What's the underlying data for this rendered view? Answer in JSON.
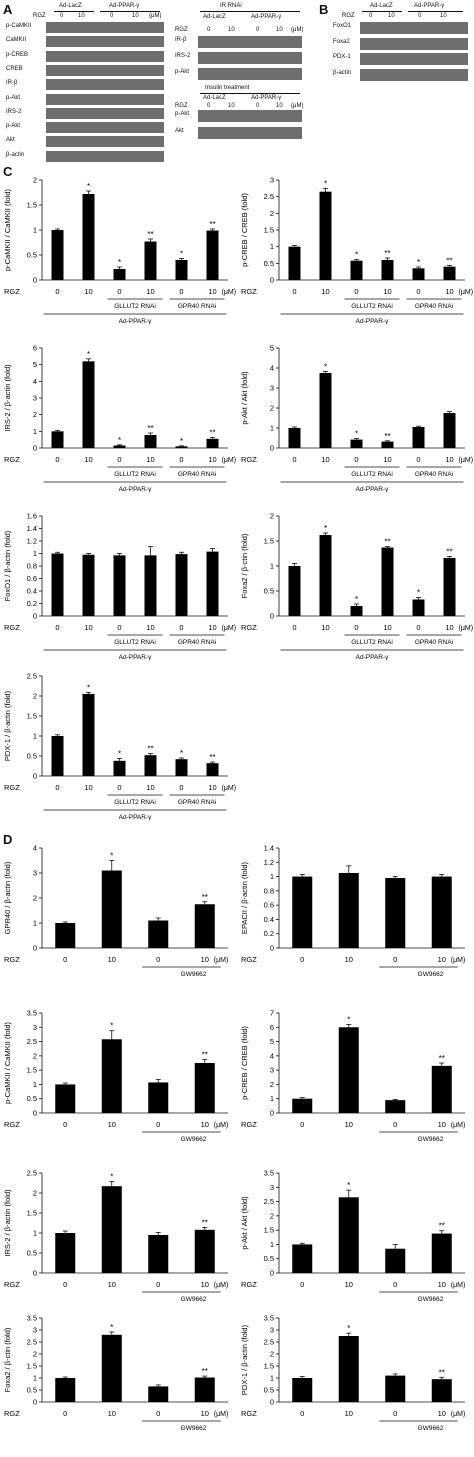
{
  "panel_labels": {
    "a": "A",
    "b": "B",
    "c": "C",
    "d": "D"
  },
  "wb": {
    "rgz": "RGZ",
    "lacz": "Ad-LacZ",
    "ppar": "Ad-PPAR-γ",
    "dose_0": "0",
    "dose_10": "10",
    "unit": "(μM)",
    "ir_rnai": "IR RNAi",
    "insulin": "Insulin treatment",
    "a_rows": [
      "p-CaMKII",
      "CaMKII",
      "p-CREB",
      "CREB",
      "IR-β",
      "p-Akt",
      "IRS-2",
      "p-Akt",
      "Akt",
      "β-actin"
    ],
    "a2_rows": [
      "IR-β",
      "IRS-2",
      "p-Akt"
    ],
    "a3_rows": [
      "p-Akt",
      "Akt"
    ],
    "b_rows": [
      "FoxO1",
      "Foxa2",
      "PDX-1",
      "β-actin"
    ]
  },
  "axis": {
    "rgz": "RGZ",
    "unit": "(μM)",
    "dose_0": "0",
    "dose_10": "10",
    "gllut2": "GLLUT2 RNAi",
    "gpr40": "GPR40 RNAi",
    "ppar": "Ad-PPAR-γ",
    "gw": "GW9662"
  },
  "colors": {
    "bar": "#000000",
    "blot": "#6e6e6e"
  },
  "chart_data": [
    {
      "type": "bar",
      "group": "C",
      "ylabel": "p-CaMKII / CaMKII (fold)",
      "ylim": [
        0,
        2
      ],
      "ticks": [
        "0",
        "0.5",
        "1",
        "1.5",
        "2"
      ],
      "values": [
        1.0,
        1.72,
        0.22,
        0.77,
        0.4,
        0.99
      ],
      "errors": [
        0.02,
        0.06,
        0.04,
        0.05,
        0.03,
        0.03
      ],
      "sig": [
        "",
        "*",
        "*",
        "**",
        "*",
        "**"
      ]
    },
    {
      "type": "bar",
      "group": "C",
      "ylabel": "p-CREB / CREB (fold)",
      "ylim": [
        0,
        3
      ],
      "ticks": [
        "0",
        "0.5",
        "1",
        "1.5",
        "2",
        "2.5",
        "3"
      ],
      "values": [
        1.0,
        2.65,
        0.58,
        0.6,
        0.35,
        0.4
      ],
      "errors": [
        0.04,
        0.1,
        0.04,
        0.06,
        0.04,
        0.04
      ],
      "sig": [
        "",
        "*",
        "*",
        "**",
        "*",
        "**"
      ]
    },
    {
      "type": "bar",
      "group": "C",
      "ylabel": "IRS-2 / β-actin (fold)",
      "ylim": [
        0,
        6
      ],
      "ticks": [
        "0",
        "1",
        "2",
        "3",
        "4",
        "5",
        "6"
      ],
      "values": [
        1.0,
        5.2,
        0.15,
        0.78,
        0.1,
        0.55
      ],
      "errors": [
        0.06,
        0.15,
        0.04,
        0.12,
        0.03,
        0.08
      ],
      "sig": [
        "",
        "*",
        "*",
        "**",
        "*",
        "**"
      ]
    },
    {
      "type": "bar",
      "group": "C",
      "ylabel": "p-Akt / Akt (fold)",
      "ylim": [
        0,
        5
      ],
      "ticks": [
        "0",
        "1",
        "2",
        "3",
        "4",
        "5"
      ],
      "values": [
        1.0,
        3.75,
        0.42,
        0.32,
        1.05,
        1.75
      ],
      "errors": [
        0.05,
        0.08,
        0.05,
        0.04,
        0.04,
        0.07
      ],
      "sig": [
        "",
        "*",
        "*",
        "**",
        "",
        ""
      ]
    },
    {
      "type": "bar",
      "group": "C",
      "ylabel": "FoxO1 / β-actin (fold)",
      "ylim": [
        0,
        1.6
      ],
      "ticks": [
        "0",
        "0.2",
        "0.4",
        "0.6",
        "0.8",
        "1",
        "1.2",
        "1.4",
        "1.6"
      ],
      "values": [
        1.0,
        0.98,
        0.97,
        0.97,
        0.99,
        1.03
      ],
      "errors": [
        0.02,
        0.02,
        0.03,
        0.14,
        0.03,
        0.05
      ],
      "sig": [
        "",
        "",
        "",
        "",
        "",
        ""
      ]
    },
    {
      "type": "bar",
      "group": "C",
      "ylabel": "Foxa2 / β-ctin (fold)",
      "ylim": [
        0,
        2
      ],
      "ticks": [
        "0",
        "0.5",
        "1",
        "1.5",
        "2"
      ],
      "values": [
        1.0,
        1.62,
        0.2,
        1.37,
        0.33,
        1.16
      ],
      "errors": [
        0.05,
        0.04,
        0.04,
        0.02,
        0.04,
        0.03
      ],
      "sig": [
        "",
        "*",
        "*",
        "**",
        "*",
        "**"
      ]
    },
    {
      "type": "bar",
      "group": "C",
      "ylabel": "PDX-1 / β-actin (fold)",
      "ylim": [
        0,
        2.5
      ],
      "ticks": [
        "0",
        "0.5",
        "1",
        "1.5",
        "2",
        "2.5"
      ],
      "values": [
        1.0,
        2.05,
        0.38,
        0.52,
        0.42,
        0.32
      ],
      "errors": [
        0.03,
        0.04,
        0.06,
        0.04,
        0.03,
        0.03
      ],
      "sig": [
        "",
        "*",
        "*",
        "**",
        "*",
        "**"
      ]
    },
    {
      "type": "bar",
      "group": "D",
      "ylabel": "GPR40 / β-actin (fold)",
      "ylim": [
        0,
        4
      ],
      "ticks": [
        "0",
        "1",
        "2",
        "3",
        "4"
      ],
      "values": [
        1.0,
        3.1,
        1.1,
        1.75
      ],
      "errors": [
        0.04,
        0.4,
        0.1,
        0.1
      ],
      "sig": [
        "",
        "*",
        "",
        "**"
      ]
    },
    {
      "type": "bar",
      "group": "D",
      "ylabel": "EPACII / β-actin (fold)",
      "ylim": [
        0,
        1.4
      ],
      "ticks": [
        "0",
        "0.2",
        "0.4",
        "0.6",
        "0.8",
        "1",
        "1.2",
        "1.4"
      ],
      "values": [
        1.0,
        1.05,
        0.98,
        1.0
      ],
      "errors": [
        0.03,
        0.1,
        0.02,
        0.03
      ],
      "sig": [
        "",
        "",
        "",
        ""
      ]
    },
    {
      "type": "bar",
      "group": "D",
      "ylabel": "p-CaMKII / CaMKII (fold)",
      "ylim": [
        0,
        3.5
      ],
      "ticks": [
        "0",
        "0.5",
        "1",
        "1.5",
        "2",
        "2.5",
        "3",
        "3.5"
      ],
      "values": [
        1.0,
        2.58,
        1.07,
        1.75
      ],
      "errors": [
        0.05,
        0.3,
        0.1,
        0.12
      ],
      "sig": [
        "",
        "*",
        "",
        "**"
      ]
    },
    {
      "type": "bar",
      "group": "D",
      "ylabel": "p-CREB / CREB (fold)",
      "ylim": [
        0,
        7
      ],
      "ticks": [
        "0",
        "1",
        "2",
        "3",
        "4",
        "5",
        "6",
        "7"
      ],
      "values": [
        1.0,
        6.0,
        0.9,
        3.3
      ],
      "errors": [
        0.08,
        0.2,
        0.05,
        0.2
      ],
      "sig": [
        "",
        "*",
        "",
        "**"
      ]
    },
    {
      "type": "bar",
      "group": "D",
      "ylabel": "IRS-2 / β-actin (fold)",
      "ylim": [
        0,
        2.5
      ],
      "ticks": [
        "0",
        "0.5",
        "1",
        "1.5",
        "2",
        "2.5"
      ],
      "values": [
        1.0,
        2.17,
        0.95,
        1.08
      ],
      "errors": [
        0.05,
        0.12,
        0.06,
        0.06
      ],
      "sig": [
        "",
        "*",
        "",
        "**"
      ]
    },
    {
      "type": "bar",
      "group": "D",
      "ylabel": "p-Akt / Akt (fold)",
      "ylim": [
        0,
        3.5
      ],
      "ticks": [
        "0",
        "0.5",
        "1",
        "1.5",
        "2",
        "2.5",
        "3",
        "3.5"
      ],
      "values": [
        1.0,
        2.65,
        0.85,
        1.38
      ],
      "errors": [
        0.04,
        0.25,
        0.15,
        0.1
      ],
      "sig": [
        "",
        "*",
        "",
        "**"
      ]
    },
    {
      "type": "bar",
      "group": "D",
      "ylabel": "Foxa2 / β-ctin (fold)",
      "ylim": [
        0,
        3.5
      ],
      "ticks": [
        "0",
        "0.5",
        "1",
        "1.5",
        "2",
        "2.5",
        "3",
        "3.5"
      ],
      "values": [
        1.0,
        2.8,
        0.65,
        1.02
      ],
      "errors": [
        0.04,
        0.12,
        0.06,
        0.06
      ],
      "sig": [
        "",
        "*",
        "",
        "**"
      ]
    },
    {
      "type": "bar",
      "group": "D",
      "ylabel": "PDX-1 / β-actin (fold)",
      "ylim": [
        0,
        3.5
      ],
      "ticks": [
        "0",
        "0.5",
        "1",
        "1.5",
        "2",
        "2.5",
        "3",
        "3.5"
      ],
      "values": [
        1.0,
        2.75,
        1.1,
        0.95
      ],
      "errors": [
        0.06,
        0.12,
        0.07,
        0.08
      ],
      "sig": [
        "",
        "*",
        "",
        "**"
      ]
    }
  ]
}
